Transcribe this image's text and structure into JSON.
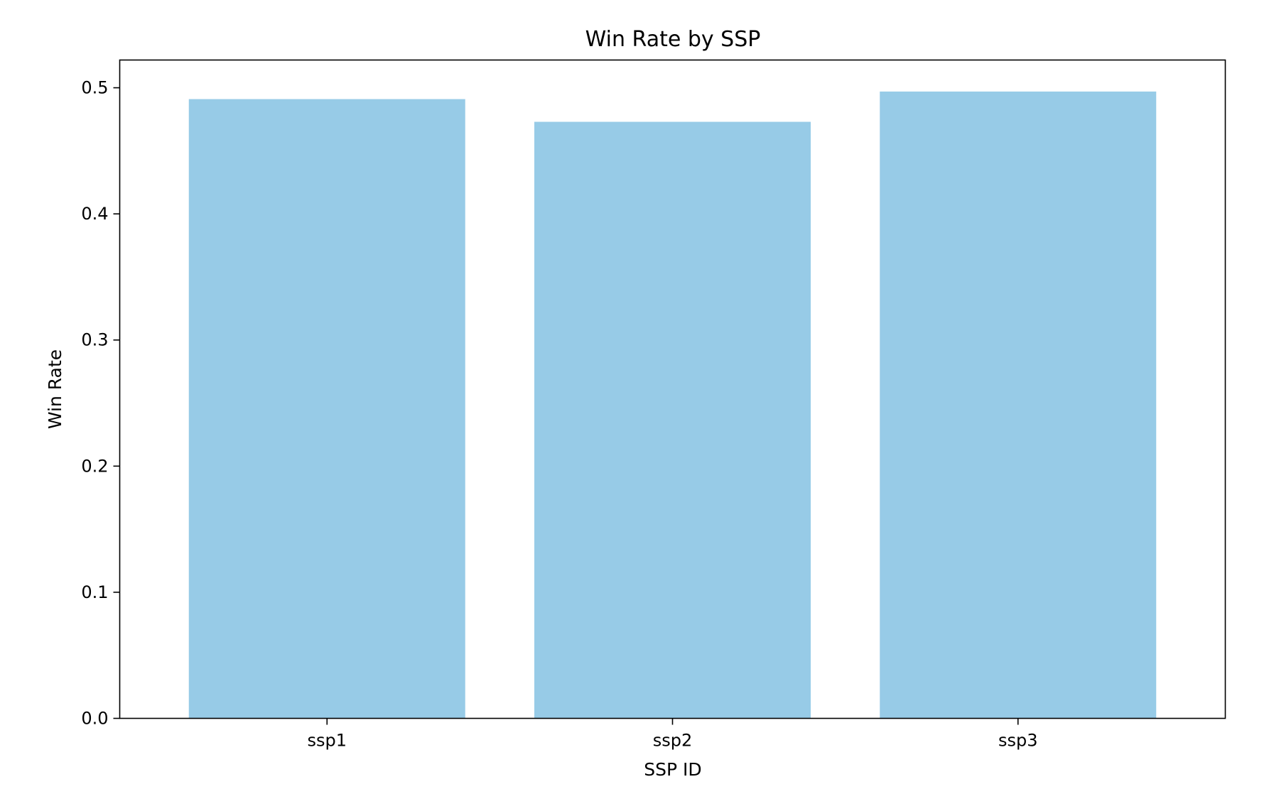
{
  "chart_data": {
    "type": "bar",
    "title": "Win Rate by SSP",
    "xlabel": "SSP ID",
    "ylabel": "Win Rate",
    "categories": [
      "ssp1",
      "ssp2",
      "ssp3"
    ],
    "values": [
      0.491,
      0.473,
      0.497
    ],
    "ylim": [
      0,
      0.522
    ],
    "yticks": [
      0.0,
      0.1,
      0.2,
      0.3,
      0.4,
      0.5
    ],
    "ytick_labels": [
      "0.0",
      "0.1",
      "0.2",
      "0.3",
      "0.4",
      "0.5"
    ],
    "bar_color": "#97cbe7",
    "grid": false,
    "legend": "none"
  }
}
